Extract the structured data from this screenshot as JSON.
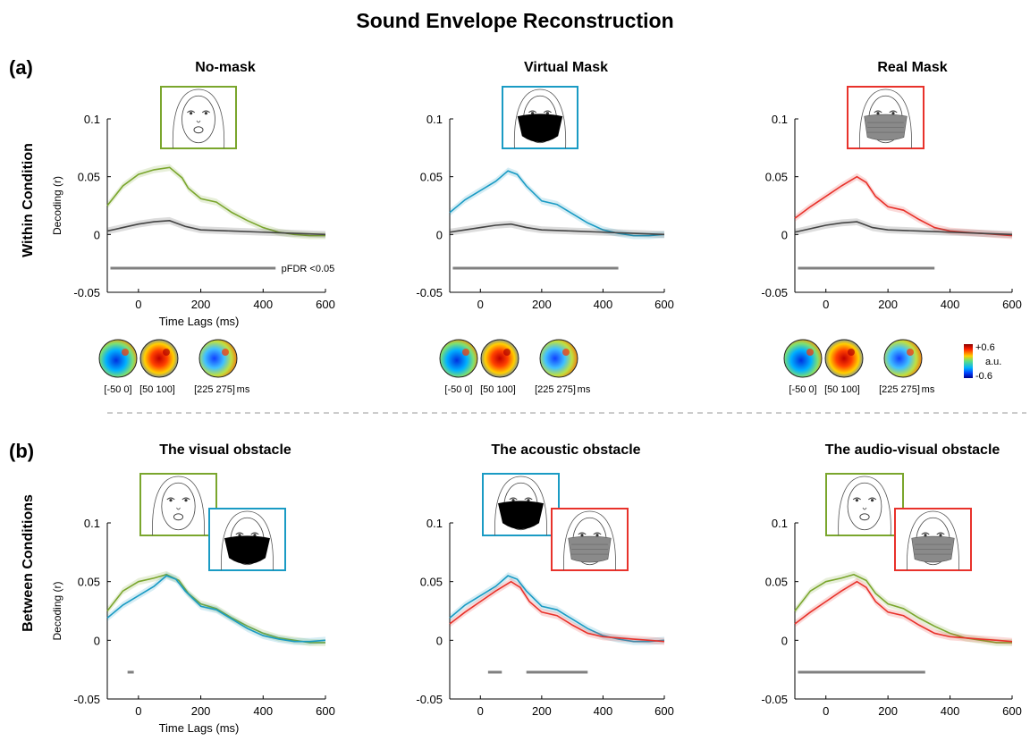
{
  "figure": {
    "title": "Sound Envelope Reconstruction",
    "rows": [
      {
        "tag": "(a)",
        "label": "Within Condition"
      },
      {
        "tag": "(b)",
        "label": "Between Conditions"
      }
    ],
    "significance_label": "pFDR <0.05",
    "topo_labels": [
      "[-50 0]",
      "[50 100]",
      "[225 275]",
      "ms"
    ],
    "colorbar": {
      "max": "+0.6",
      "min": "-0.6",
      "unit": "a.u."
    }
  },
  "colors": {
    "no_mask": "#7aa62d",
    "virtual_mask": "#1a9bc4",
    "real_mask": "#e8322b",
    "baseline": "#444444",
    "significance_bar": "#808080",
    "divider": "#bbbbbb"
  },
  "icons": [
    "face-no-mask-icon",
    "face-virtual-mask-icon",
    "face-real-mask-icon",
    "topography-map-icon"
  ],
  "chart_data": [
    {
      "type": "line",
      "title": "No-mask",
      "xlabel": "Time Lags (ms)",
      "ylabel": "Decoding (r)",
      "xlim": [
        -100,
        600
      ],
      "ylim": [
        -0.05,
        0.1
      ],
      "xticks": [
        0,
        200,
        400,
        600
      ],
      "yticks": [
        -0.05,
        0,
        0.05,
        0.1
      ],
      "significance": [
        [
          -90,
          440
        ]
      ],
      "significance_label": "pFDR <0.05",
      "series": [
        {
          "color": "no_mask",
          "x": [
            -100,
            -50,
            0,
            50,
            100,
            140,
            160,
            200,
            250,
            300,
            350,
            400,
            450,
            500,
            550,
            600
          ],
          "y": [
            0.025,
            0.042,
            0.052,
            0.056,
            0.058,
            0.049,
            0.04,
            0.031,
            0.028,
            0.019,
            0.012,
            0.006,
            0.002,
            0.0,
            -0.001,
            -0.001
          ]
        },
        {
          "color": "baseline",
          "x": [
            -100,
            -50,
            0,
            50,
            100,
            150,
            200,
            300,
            400,
            500,
            600
          ],
          "y": [
            0.003,
            0.006,
            0.009,
            0.011,
            0.012,
            0.007,
            0.004,
            0.003,
            0.002,
            0.001,
            0.0
          ]
        }
      ]
    },
    {
      "type": "line",
      "title": "Virtual Mask",
      "xlabel": "",
      "ylabel": "",
      "xlim": [
        -100,
        600
      ],
      "ylim": [
        -0.05,
        0.1
      ],
      "xticks": [
        0,
        200,
        400,
        600
      ],
      "yticks": [
        -0.05,
        0,
        0.05,
        0.1
      ],
      "significance": [
        [
          -90,
          450
        ]
      ],
      "series": [
        {
          "color": "virtual_mask",
          "x": [
            -100,
            -50,
            0,
            50,
            90,
            120,
            150,
            200,
            250,
            300,
            350,
            400,
            450,
            500,
            550,
            600
          ],
          "y": [
            0.019,
            0.03,
            0.038,
            0.046,
            0.055,
            0.052,
            0.042,
            0.029,
            0.026,
            0.018,
            0.01,
            0.004,
            0.001,
            -0.001,
            -0.001,
            0.0
          ]
        },
        {
          "color": "baseline",
          "x": [
            -100,
            -50,
            0,
            50,
            100,
            150,
            200,
            300,
            400,
            500,
            600
          ],
          "y": [
            0.002,
            0.004,
            0.006,
            0.008,
            0.009,
            0.006,
            0.004,
            0.003,
            0.002,
            0.001,
            0.0
          ]
        }
      ]
    },
    {
      "type": "line",
      "title": "Real Mask",
      "xlabel": "",
      "ylabel": "",
      "xlim": [
        -100,
        600
      ],
      "ylim": [
        -0.05,
        0.1
      ],
      "xticks": [
        0,
        200,
        400,
        600
      ],
      "yticks": [
        -0.05,
        0,
        0.05,
        0.1
      ],
      "significance": [
        [
          -90,
          350
        ]
      ],
      "series": [
        {
          "color": "real_mask",
          "x": [
            -100,
            -50,
            0,
            50,
            100,
            130,
            160,
            200,
            250,
            300,
            350,
            400,
            450,
            500,
            550,
            600
          ],
          "y": [
            0.014,
            0.024,
            0.033,
            0.042,
            0.05,
            0.045,
            0.033,
            0.024,
            0.021,
            0.013,
            0.006,
            0.003,
            0.002,
            0.001,
            0.0,
            -0.001
          ]
        },
        {
          "color": "baseline",
          "x": [
            -100,
            -50,
            0,
            50,
            100,
            150,
            200,
            300,
            400,
            500,
            600
          ],
          "y": [
            0.002,
            0.005,
            0.008,
            0.01,
            0.011,
            0.006,
            0.004,
            0.003,
            0.002,
            0.001,
            0.0
          ]
        }
      ]
    },
    {
      "type": "line",
      "title": "The visual obstacle",
      "xlabel": "Time Lags (ms)",
      "ylabel": "Decoding (r)",
      "xlim": [
        -100,
        600
      ],
      "ylim": [
        -0.05,
        0.1
      ],
      "xticks": [
        0,
        200,
        400,
        600
      ],
      "yticks": [
        -0.05,
        0,
        0.05,
        0.1
      ],
      "significance": [
        [
          -35,
          -15
        ]
      ],
      "series": [
        {
          "color": "no_mask",
          "x": [
            -100,
            -50,
            0,
            50,
            90,
            130,
            160,
            200,
            250,
            300,
            350,
            400,
            450,
            500,
            550,
            600
          ],
          "y": [
            0.025,
            0.042,
            0.05,
            0.053,
            0.056,
            0.051,
            0.04,
            0.031,
            0.027,
            0.019,
            0.012,
            0.006,
            0.002,
            0.0,
            -0.002,
            -0.002
          ]
        },
        {
          "color": "virtual_mask",
          "x": [
            -100,
            -50,
            0,
            50,
            90,
            120,
            150,
            200,
            250,
            300,
            350,
            400,
            450,
            500,
            550,
            600
          ],
          "y": [
            0.019,
            0.03,
            0.038,
            0.046,
            0.055,
            0.052,
            0.042,
            0.029,
            0.026,
            0.018,
            0.01,
            0.004,
            0.001,
            -0.001,
            -0.001,
            0.0
          ]
        }
      ]
    },
    {
      "type": "line",
      "title": "The acoustic obstacle",
      "xlabel": "",
      "ylabel": "",
      "xlim": [
        -100,
        600
      ],
      "ylim": [
        -0.05,
        0.1
      ],
      "xticks": [
        0,
        200,
        400,
        600
      ],
      "yticks": [
        -0.05,
        0,
        0.05,
        0.1
      ],
      "significance": [
        [
          25,
          70
        ],
        [
          150,
          350
        ]
      ],
      "series": [
        {
          "color": "virtual_mask",
          "x": [
            -100,
            -50,
            0,
            50,
            90,
            120,
            150,
            200,
            250,
            300,
            350,
            400,
            450,
            500,
            550,
            600
          ],
          "y": [
            0.019,
            0.03,
            0.038,
            0.046,
            0.055,
            0.052,
            0.042,
            0.029,
            0.026,
            0.018,
            0.01,
            0.004,
            0.001,
            -0.001,
            -0.001,
            0.0
          ]
        },
        {
          "color": "real_mask",
          "x": [
            -100,
            -50,
            0,
            50,
            100,
            130,
            160,
            200,
            250,
            300,
            350,
            400,
            450,
            500,
            550,
            600
          ],
          "y": [
            0.014,
            0.024,
            0.033,
            0.042,
            0.05,
            0.045,
            0.033,
            0.024,
            0.021,
            0.013,
            0.006,
            0.003,
            0.002,
            0.001,
            0.0,
            -0.001
          ]
        }
      ]
    },
    {
      "type": "line",
      "title": "The audio-visual obstacle",
      "xlabel": "",
      "ylabel": "",
      "xlim": [
        -100,
        600
      ],
      "ylim": [
        -0.05,
        0.1
      ],
      "xticks": [
        0,
        200,
        400,
        600
      ],
      "yticks": [
        -0.05,
        0,
        0.05,
        0.1
      ],
      "significance": [
        [
          -90,
          320
        ]
      ],
      "series": [
        {
          "color": "no_mask",
          "x": [
            -100,
            -50,
            0,
            50,
            90,
            130,
            160,
            200,
            250,
            300,
            350,
            400,
            450,
            500,
            550,
            600
          ],
          "y": [
            0.025,
            0.042,
            0.05,
            0.053,
            0.056,
            0.051,
            0.04,
            0.031,
            0.027,
            0.019,
            0.012,
            0.006,
            0.002,
            0.0,
            -0.002,
            -0.002
          ]
        },
        {
          "color": "real_mask",
          "x": [
            -100,
            -50,
            0,
            50,
            100,
            130,
            160,
            200,
            250,
            300,
            350,
            400,
            450,
            500,
            550,
            600
          ],
          "y": [
            0.014,
            0.024,
            0.033,
            0.042,
            0.05,
            0.045,
            0.033,
            0.024,
            0.021,
            0.013,
            0.006,
            0.003,
            0.002,
            0.001,
            0.0,
            -0.001
          ]
        }
      ]
    }
  ]
}
